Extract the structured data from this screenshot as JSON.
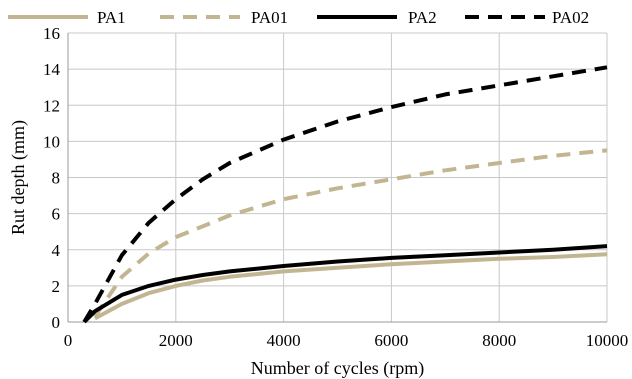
{
  "chart_data": {
    "type": "line",
    "title": "",
    "xlabel": "Number of cycles (rpm)",
    "ylabel": "Rut depth (mm)",
    "xlim": [
      0,
      10000
    ],
    "ylim": [
      0,
      16
    ],
    "xticks": [
      0,
      2000,
      4000,
      6000,
      8000,
      10000
    ],
    "yticks": [
      0,
      2,
      4,
      6,
      8,
      10,
      12,
      14,
      16
    ],
    "grid": true,
    "legend_position": "top",
    "series": [
      {
        "name": "PA1",
        "color": "#c2b592",
        "dash": "solid",
        "x": [
          500,
          1000,
          1500,
          2000,
          2500,
          3000,
          4000,
          5000,
          6000,
          7000,
          8000,
          9000,
          10000
        ],
        "values": [
          0.2,
          1.0,
          1.6,
          2.0,
          2.3,
          2.5,
          2.8,
          3.0,
          3.2,
          3.35,
          3.5,
          3.6,
          3.75
        ]
      },
      {
        "name": "PA01",
        "color": "#c2b592",
        "dash": "dashed",
        "x": [
          500,
          1000,
          1500,
          2000,
          2500,
          3000,
          4000,
          5000,
          6000,
          7000,
          8000,
          9000,
          10000
        ],
        "values": [
          0.3,
          2.5,
          3.8,
          4.7,
          5.3,
          5.9,
          6.8,
          7.4,
          7.9,
          8.4,
          8.8,
          9.2,
          9.5
        ]
      },
      {
        "name": "PA2",
        "color": "#000000",
        "dash": "solid",
        "x": [
          300,
          500,
          1000,
          1500,
          2000,
          2500,
          3000,
          4000,
          5000,
          6000,
          7000,
          8000,
          9000,
          10000
        ],
        "values": [
          0.0,
          0.6,
          1.5,
          2.0,
          2.35,
          2.6,
          2.8,
          3.1,
          3.35,
          3.55,
          3.7,
          3.85,
          4.0,
          4.2
        ]
      },
      {
        "name": "PA02",
        "color": "#000000",
        "dash": "dashed",
        "x": [
          300,
          500,
          1000,
          1500,
          2000,
          2500,
          3000,
          4000,
          5000,
          6000,
          7000,
          8000,
          9000,
          10000
        ],
        "values": [
          0.0,
          1.0,
          3.7,
          5.5,
          6.8,
          7.9,
          8.8,
          10.1,
          11.1,
          11.9,
          12.6,
          13.1,
          13.6,
          14.1
        ]
      }
    ]
  }
}
